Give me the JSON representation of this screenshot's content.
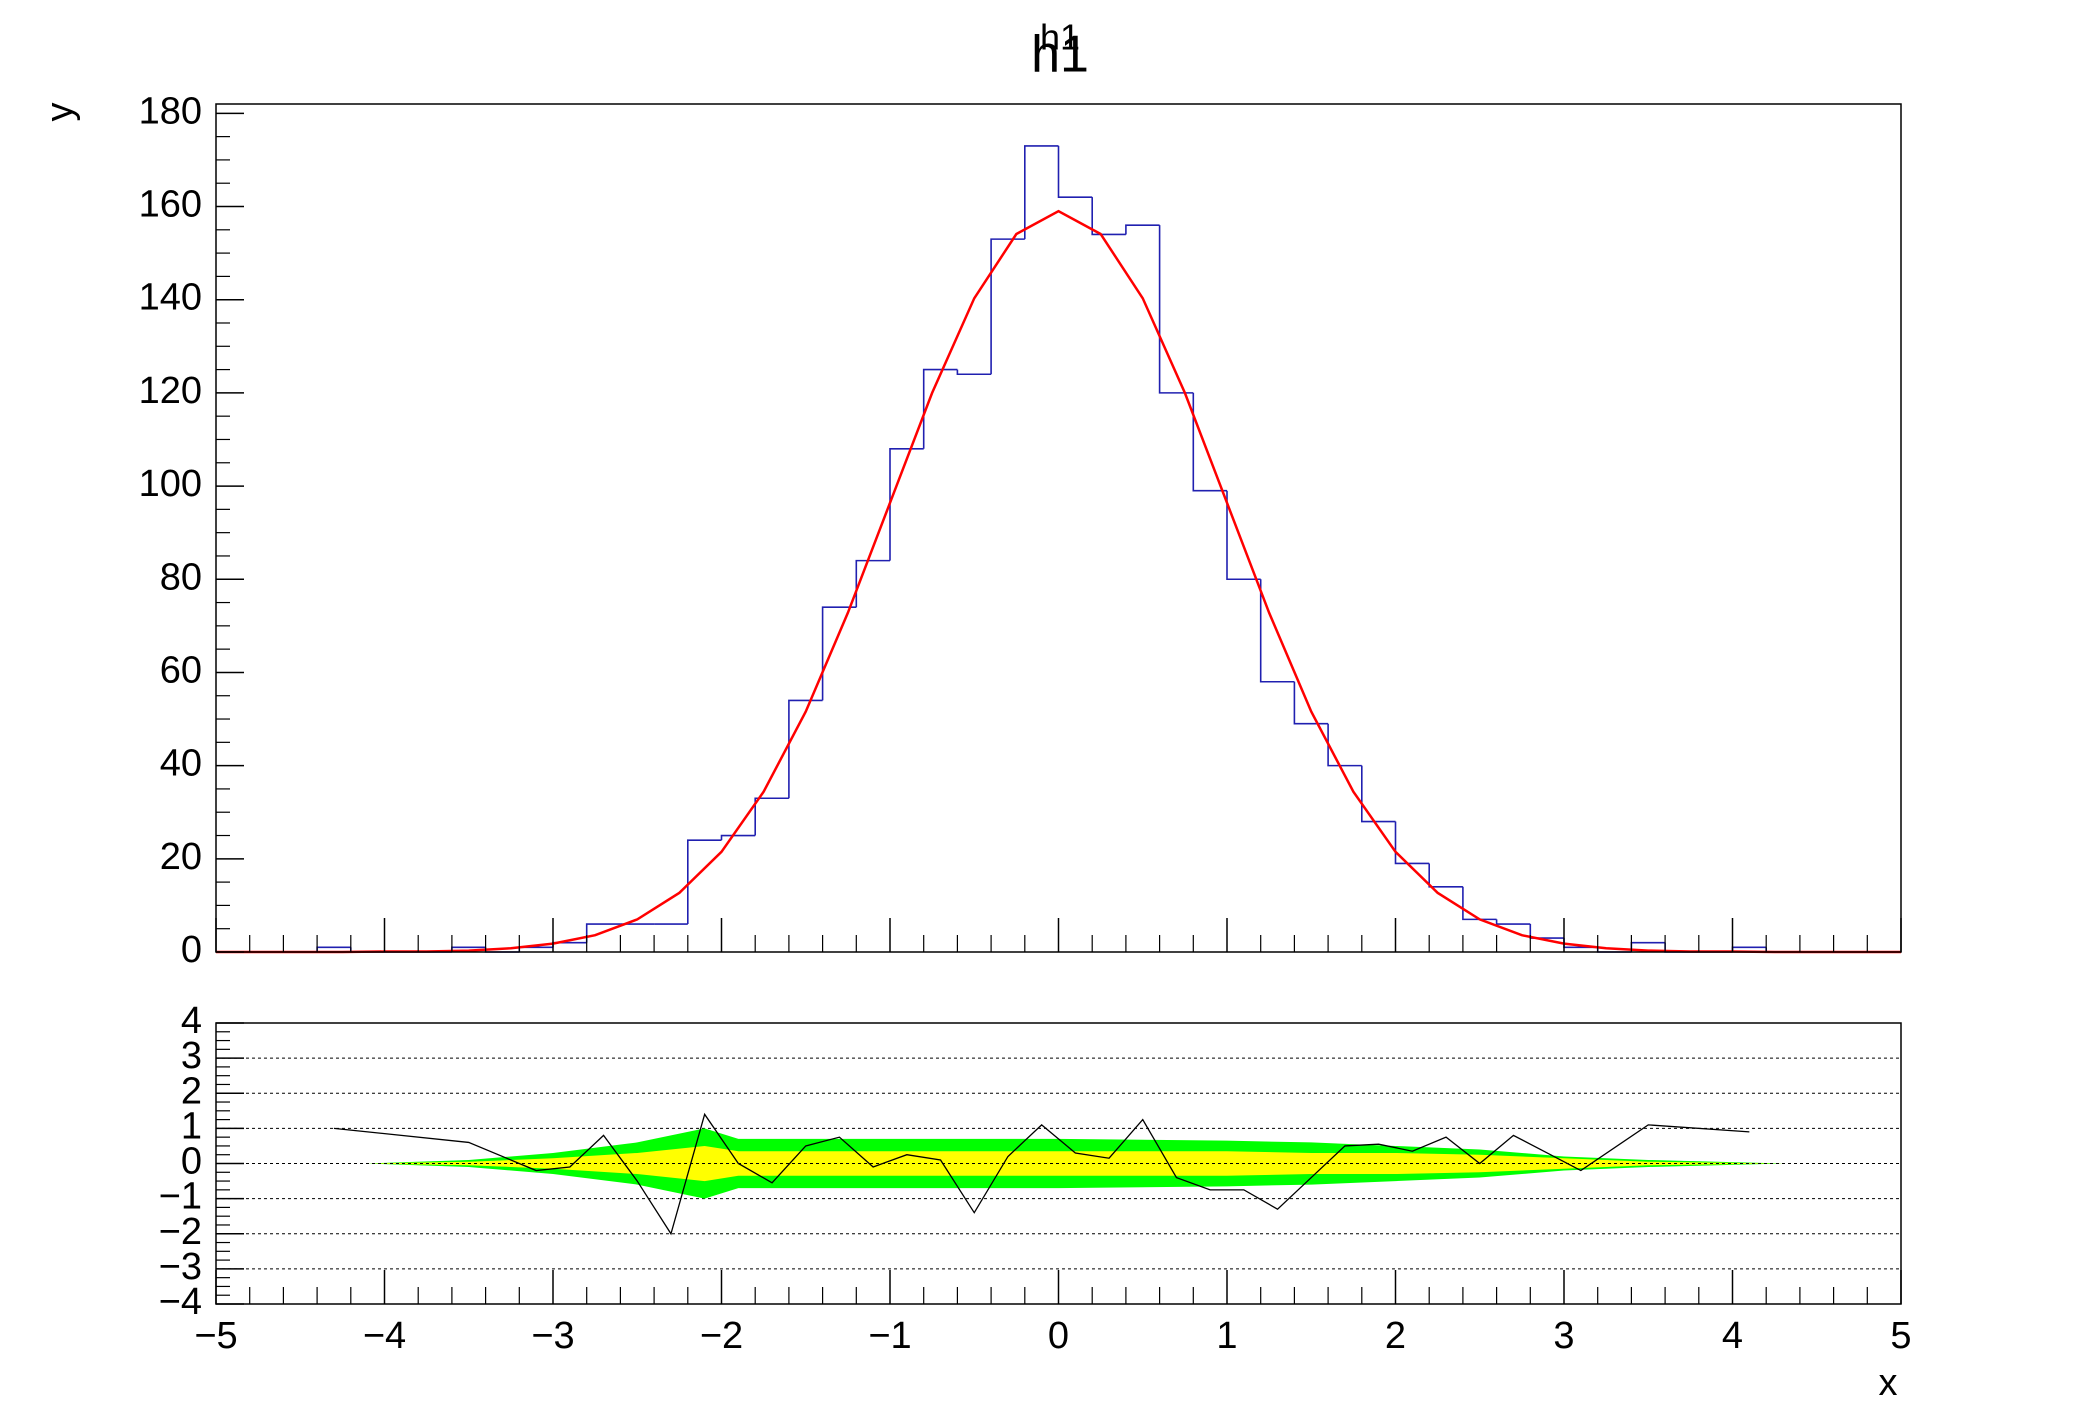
{
  "chart_data": [
    {
      "type": "histogram",
      "title": "h1",
      "title_small": "h1",
      "ylabel": "y",
      "bins": [
        -5,
        -4.8,
        -4.6,
        -4.4,
        -4.2,
        -4,
        -3.8,
        -3.6,
        -3.4,
        -3.2,
        -3,
        -2.8,
        -2.6,
        -2.4,
        -2.2,
        -2,
        -1.8,
        -1.6,
        -1.4,
        -1.2,
        -1,
        -0.8,
        -0.6,
        -0.4,
        -0.2,
        0,
        0.2,
        0.4,
        0.6,
        0.8,
        1,
        1.2,
        1.4,
        1.6,
        1.8,
        2,
        2.2,
        2.4,
        2.6,
        2.8,
        3,
        3.2,
        3.4,
        3.6,
        3.8,
        4,
        4.2,
        4.4,
        4.6,
        4.8,
        5
      ],
      "counts": [
        0,
        0,
        0,
        1,
        0,
        0,
        0,
        1,
        0,
        1,
        2,
        6,
        6,
        6,
        24,
        25,
        33,
        54,
        74,
        84,
        108,
        125,
        124,
        153,
        173,
        162,
        154,
        156,
        120,
        99,
        80,
        58,
        49,
        40,
        28,
        19,
        14,
        7,
        6,
        3,
        1,
        0,
        2,
        0,
        0,
        1,
        0,
        0,
        0,
        0
      ],
      "color": "#2020b0",
      "fit": {
        "color": "#ff0000",
        "x": [
          -5,
          -4.75,
          -4.5,
          -4.25,
          -4,
          -3.75,
          -3.5,
          -3.25,
          -3,
          -2.75,
          -2.5,
          -2.25,
          -2,
          -1.75,
          -1.5,
          -1.25,
          -1,
          -0.75,
          -0.5,
          -0.25,
          0,
          0.25,
          0.5,
          0.75,
          1,
          1.25,
          1.5,
          1.75,
          2,
          2.25,
          2.5,
          2.75,
          3,
          3.25,
          3.5,
          3.75,
          4,
          4.25,
          4.5,
          4.75,
          5
        ],
        "values": [
          0,
          0,
          0,
          0,
          0.1,
          0.1,
          0.3,
          0.8,
          1.8,
          3.6,
          7,
          12.7,
          21.5,
          34.4,
          51.6,
          72.8,
          96.4,
          120,
          140.3,
          154.1,
          159,
          154.1,
          140.3,
          120,
          96.4,
          72.8,
          51.6,
          34.4,
          21.5,
          12.7,
          7,
          3.6,
          1.8,
          0.8,
          0.3,
          0.1,
          0.1,
          0,
          0,
          0,
          0
        ]
      },
      "xlim": [
        -5,
        5
      ],
      "ylim": [
        0,
        182
      ],
      "yticks": [
        0,
        20,
        40,
        60,
        80,
        100,
        120,
        140,
        160,
        180
      ]
    },
    {
      "type": "line",
      "xlabel": "x",
      "color": "#000000",
      "x": [
        -4.3,
        -3.5,
        -3.1,
        -2.9,
        -2.7,
        -2.5,
        -2.3,
        -2.1,
        -1.9,
        -1.7,
        -1.5,
        -1.3,
        -1.1,
        -0.9,
        -0.7,
        -0.5,
        -0.3,
        -0.1,
        0.1,
        0.3,
        0.5,
        0.7,
        0.9,
        1.1,
        1.3,
        1.5,
        1.7,
        1.9,
        2.1,
        2.3,
        2.5,
        2.7,
        2.9,
        3.1,
        3.5,
        4.1
      ],
      "values": [
        1,
        0.6,
        -0.2,
        -0.1,
        0.8,
        -0.5,
        -2,
        1.4,
        0,
        -0.55,
        0.5,
        0.75,
        -0.1,
        0.25,
        0.1,
        -1.4,
        0.2,
        1.1,
        0.3,
        0.15,
        1.25,
        -0.4,
        -0.75,
        -0.75,
        -1.3,
        -0.4,
        0.5,
        0.55,
        0.35,
        0.75,
        0,
        0.8,
        0.3,
        -0.2,
        1.1,
        0.9
      ],
      "band_x": [
        -4.1,
        -3.5,
        -3,
        -2.5,
        -2.1,
        -1.9,
        -1.5,
        -1,
        0,
        1,
        1.5,
        2,
        2.5,
        3,
        3.5,
        4.3
      ],
      "band_1sigma": [
        0,
        0.05,
        0.15,
        0.3,
        0.5,
        0.35,
        0.35,
        0.35,
        0.35,
        0.35,
        0.3,
        0.3,
        0.25,
        0.15,
        0.05,
        0
      ],
      "band_2sigma": [
        0,
        0.1,
        0.3,
        0.6,
        1,
        0.7,
        0.7,
        0.7,
        0.7,
        0.65,
        0.6,
        0.5,
        0.4,
        0.2,
        0.1,
        0
      ],
      "band_1sigma_color": "#ffff00",
      "band_2sigma_color": "#00ff00",
      "xlim": [
        -5,
        5
      ],
      "ylim": [
        -4,
        4
      ],
      "xticks": [
        {
          "value": -5,
          "label": "−5"
        },
        {
          "value": -4,
          "label": "−4"
        },
        {
          "value": -3,
          "label": "−3"
        },
        {
          "value": -2,
          "label": "−2"
        },
        {
          "value": -1,
          "label": "−1"
        },
        0,
        1,
        2,
        3,
        4,
        5
      ],
      "yticks": [
        {
          "value": -4,
          "label": "−4"
        },
        {
          "value": -3,
          "label": "−3"
        },
        {
          "value": -2,
          "label": "−2"
        },
        {
          "value": -1,
          "label": "−1"
        },
        0,
        1,
        2,
        3,
        4
      ],
      "grid": true
    }
  ]
}
